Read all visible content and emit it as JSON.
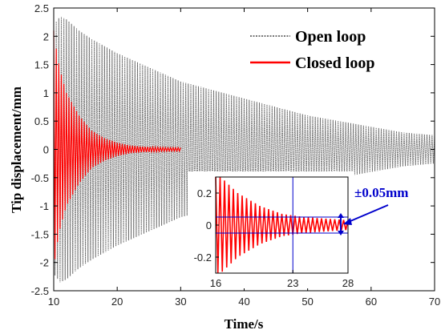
{
  "chart_data": {
    "type": "line",
    "xlabel": "Time/s",
    "ylabel": "Tip displacement/mm",
    "xlim": [
      10,
      70
    ],
    "ylim": [
      -2.5,
      2.5
    ],
    "x_ticks": [
      10,
      20,
      30,
      40,
      50,
      60,
      70
    ],
    "y_ticks": [
      2.5,
      2,
      1.5,
      1,
      0.5,
      0,
      -0.5,
      -1,
      -1.5,
      -2,
      -2.5
    ],
    "grid": false,
    "legend_position": "top-right",
    "series": [
      {
        "name": "Open loop",
        "color": "#666666",
        "style": "dotted",
        "x_start": 10,
        "x_end": 70,
        "envelope": {
          "t": [
            10,
            11,
            12,
            14,
            16,
            20,
            25,
            30,
            35,
            40,
            45,
            50,
            55,
            60,
            65,
            70
          ],
          "amplitude": [
            2.2,
            2.35,
            2.3,
            2.1,
            1.95,
            1.7,
            1.45,
            1.2,
            1.05,
            0.9,
            0.75,
            0.6,
            0.5,
            0.4,
            0.3,
            0.25
          ]
        }
      },
      {
        "name": "Closed loop",
        "color": "#ff0000",
        "style": "solid",
        "x_start": 10,
        "x_end": 30,
        "envelope": {
          "t": [
            10,
            10.5,
            11,
            12,
            13,
            14,
            16,
            18,
            20,
            22,
            24,
            26,
            28,
            30
          ],
          "amplitude": [
            2.1,
            1.7,
            1.4,
            1.0,
            0.8,
            0.6,
            0.33,
            0.2,
            0.12,
            0.07,
            0.05,
            0.04,
            0.03,
            0.03
          ]
        }
      }
    ],
    "inset": {
      "xlim": [
        16,
        28
      ],
      "ylim": [
        -0.3,
        0.3
      ],
      "x_ticks": [
        16,
        23,
        28
      ],
      "y_ticks": [
        0.2,
        0,
        -0.2
      ],
      "reference_lines": {
        "vertical_x": 23,
        "horizontal_y": [
          0.05,
          -0.05
        ]
      },
      "annotation": "±0.05mm",
      "annotation_color": "#0000cc"
    }
  }
}
